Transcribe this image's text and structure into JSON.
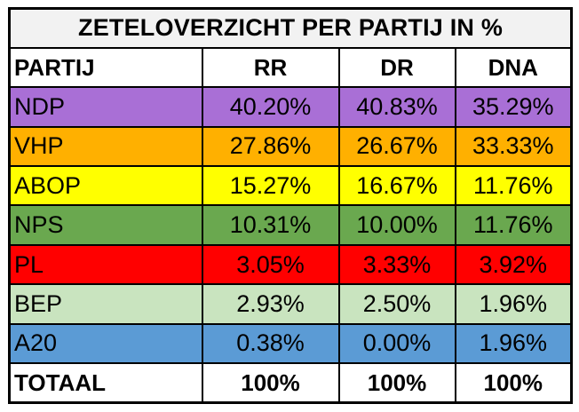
{
  "chart_data": {
    "type": "table",
    "title": "ZETELOVERZICHT PER PARTIJ IN %",
    "columns": [
      "PARTIJ",
      "RR",
      "DR",
      "DNA"
    ],
    "rows": [
      {
        "party": "NDP",
        "color": "#a96fd6",
        "text_color": "#000000",
        "values": [
          "40.20%",
          "40.83%",
          "35.29%"
        ]
      },
      {
        "party": "VHP",
        "color": "#ffb000",
        "text_color": "#000000",
        "values": [
          "27.86%",
          "26.67%",
          "33.33%"
        ]
      },
      {
        "party": "ABOP",
        "color": "#ffff00",
        "text_color": "#000000",
        "values": [
          "15.27%",
          "16.67%",
          "11.76%"
        ]
      },
      {
        "party": "NPS",
        "color": "#6aa84f",
        "text_color": "#000000",
        "values": [
          "10.31%",
          "10.00%",
          "11.76%"
        ]
      },
      {
        "party": "PL",
        "color": "#ff0000",
        "text_color": "#000000",
        "values": [
          "3.05%",
          "3.33%",
          "3.92%"
        ]
      },
      {
        "party": "BEP",
        "color": "#c9e4bf",
        "text_color": "#000000",
        "values": [
          "2.93%",
          "2.50%",
          "1.96%"
        ]
      },
      {
        "party": "A20",
        "color": "#5b9bd5",
        "text_color": "#000000",
        "values": [
          "0.38%",
          "0.00%",
          "1.96%"
        ]
      }
    ],
    "total": {
      "label": "TOTAAL",
      "values": [
        "100%",
        "100%",
        "100%"
      ]
    }
  }
}
